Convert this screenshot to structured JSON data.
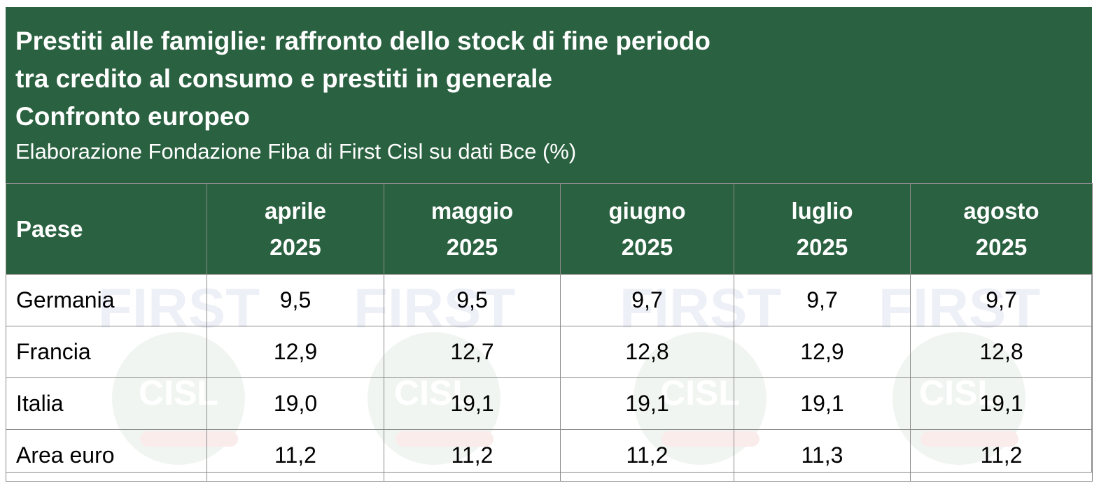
{
  "title_lines": [
    "Prestiti alle famiglie: raffronto dello stock di fine periodo",
    "tra credito al consumo e prestiti in generale",
    "Confronto europeo"
  ],
  "subtitle": "Elaborazione Fondazione Fiba di First Cisl su dati Bce (%)",
  "watermark": {
    "top": "FIRST",
    "logo": "CISL",
    "brand_color": "#2a6140"
  },
  "table": {
    "headers": [
      {
        "line1": "Paese",
        "line2": ""
      },
      {
        "line1": "aprile",
        "line2": "2025"
      },
      {
        "line1": "maggio",
        "line2": "2025"
      },
      {
        "line1": "giugno",
        "line2": "2025"
      },
      {
        "line1": "luglio",
        "line2": "2025"
      },
      {
        "line1": "agosto",
        "line2": "2025"
      }
    ],
    "rows": [
      [
        "Germania",
        "9,5",
        "9,5",
        "9,7",
        "9,7",
        "9,7"
      ],
      [
        "Francia",
        "12,9",
        "12,7",
        "12,8",
        "12,9",
        "12,8"
      ],
      [
        "Italia",
        "19,0",
        "19,1",
        "19,1",
        "19,1",
        "19,1"
      ],
      [
        "Area euro",
        "11,2",
        "11,2",
        "11,2",
        "11,3",
        "11,2"
      ]
    ]
  }
}
